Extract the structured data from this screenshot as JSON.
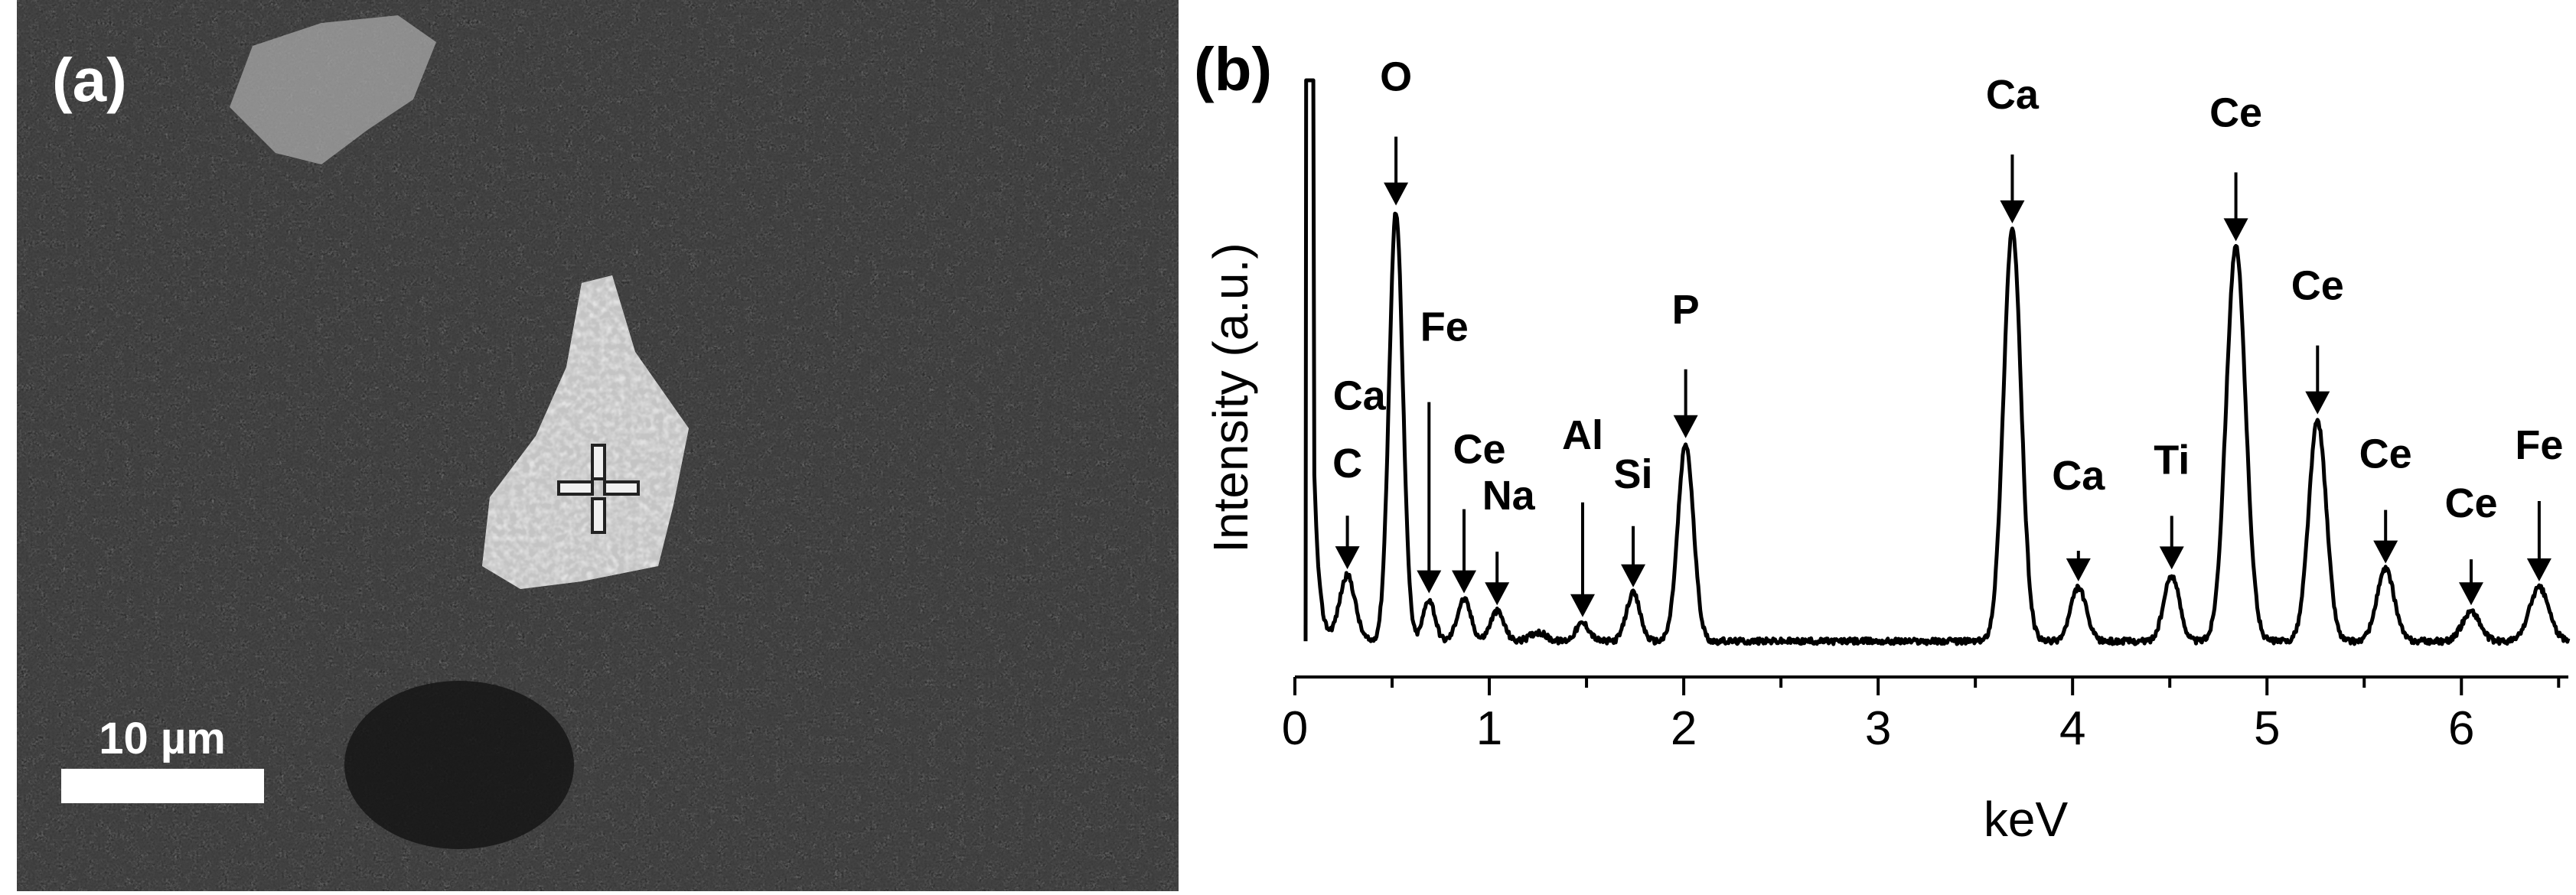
{
  "panel_a": {
    "label": "(a)",
    "scale_bar_label": "10 µm"
  },
  "panel_b": {
    "label": "(b)"
  },
  "colors": {
    "background": "#ffffff",
    "sem_background": "#2a2a2a",
    "particle": "#dcdcdc",
    "spectrum_line": "#000000"
  },
  "chart_data": {
    "type": "line",
    "title": "",
    "xlabel": "keV",
    "ylabel": "Intensity (a.u.)",
    "xlim": [
      0,
      6.55
    ],
    "ylim": [
      0,
      100
    ],
    "xticks": [
      "0",
      "1",
      "2",
      "3",
      "4",
      "5",
      "6"
    ],
    "grid": false,
    "baseline": 6,
    "zero_peak": {
      "x": 0.07,
      "y": 100
    },
    "peaks": [
      {
        "x": 0.27,
        "height": 11,
        "width": 0.04
      },
      {
        "x": 0.52,
        "height": 72,
        "width": 0.035
      },
      {
        "x": 0.69,
        "height": 7,
        "width": 0.03
      },
      {
        "x": 0.87,
        "height": 7,
        "width": 0.035
      },
      {
        "x": 1.04,
        "height": 5,
        "width": 0.035
      },
      {
        "x": 1.25,
        "height": 1.5,
        "width": 0.04
      },
      {
        "x": 1.48,
        "height": 3,
        "width": 0.035
      },
      {
        "x": 1.74,
        "height": 8,
        "width": 0.035
      },
      {
        "x": 2.01,
        "height": 33,
        "width": 0.04
      },
      {
        "x": 3.69,
        "height": 69,
        "width": 0.045
      },
      {
        "x": 4.03,
        "height": 9,
        "width": 0.04
      },
      {
        "x": 4.51,
        "height": 11,
        "width": 0.04
      },
      {
        "x": 4.84,
        "height": 66,
        "width": 0.05
      },
      {
        "x": 5.26,
        "height": 37,
        "width": 0.045
      },
      {
        "x": 5.61,
        "height": 12,
        "width": 0.045
      },
      {
        "x": 6.05,
        "height": 5,
        "width": 0.045
      },
      {
        "x": 6.4,
        "height": 9,
        "width": 0.05
      }
    ],
    "peak_labels": [
      {
        "text": "C",
        "x": 0.27
      },
      {
        "text": "Ca",
        "x": 0.3
      },
      {
        "text": "O",
        "x": 0.52
      },
      {
        "text": "Fe",
        "x": 0.69
      },
      {
        "text": "Ce",
        "x": 0.87
      },
      {
        "text": "Na",
        "x": 1.04
      },
      {
        "text": "Al",
        "x": 1.48
      },
      {
        "text": "Si",
        "x": 1.74
      },
      {
        "text": "P",
        "x": 2.01
      },
      {
        "text": "Ca",
        "x": 3.69
      },
      {
        "text": "Ca",
        "x": 4.03
      },
      {
        "text": "Ti",
        "x": 4.51
      },
      {
        "text": "Ce",
        "x": 4.84
      },
      {
        "text": "Ce",
        "x": 5.26
      },
      {
        "text": "Ce",
        "x": 5.61
      },
      {
        "text": "Ce",
        "x": 6.05
      },
      {
        "text": "Fe",
        "x": 6.4
      }
    ]
  }
}
